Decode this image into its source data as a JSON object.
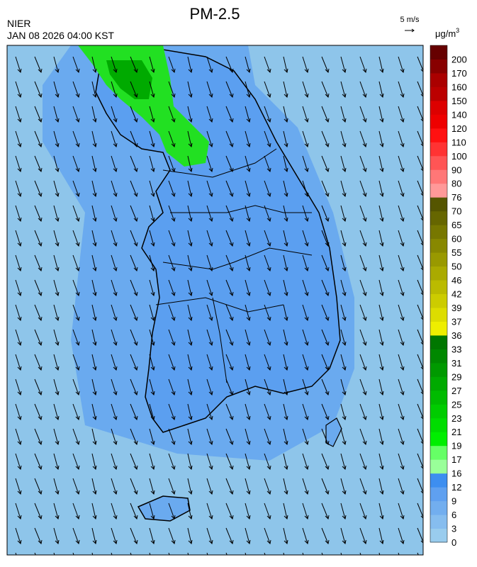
{
  "header": {
    "title": "PM-2.5",
    "agency": "NIER",
    "datetime": "JAN 08 2026 04:00 KST",
    "wind_scale": "5 m/s"
  },
  "legend": {
    "unit": {
      "base": "μg/m",
      "sup": "3"
    },
    "levels": [
      0,
      3,
      6,
      9,
      12,
      16,
      17,
      19,
      21,
      23,
      25,
      27,
      29,
      31,
      33,
      36,
      37,
      39,
      42,
      46,
      50,
      55,
      60,
      65,
      70,
      76,
      80,
      90,
      100,
      110,
      120,
      140,
      150,
      160,
      170,
      200
    ],
    "colors": [
      "#99ccee",
      "#86bdef",
      "#72aeef",
      "#5fa0f0",
      "#3d8ef0",
      "#99ff99",
      "#66ff66",
      "#00ee00",
      "#00dd00",
      "#00cc00",
      "#00bb00",
      "#00aa00",
      "#009900",
      "#008800",
      "#007700",
      "#eeee00",
      "#dddd00",
      "#cccc00",
      "#bbbb00",
      "#aaaa00",
      "#999900",
      "#888800",
      "#777700",
      "#666600",
      "#555500",
      "#ff9999",
      "#ff7777",
      "#ff5555",
      "#ff3333",
      "#ff1111",
      "#ee0000",
      "#dd0000",
      "#bb0000",
      "#aa0000",
      "#880000",
      "#660000"
    ]
  }
}
